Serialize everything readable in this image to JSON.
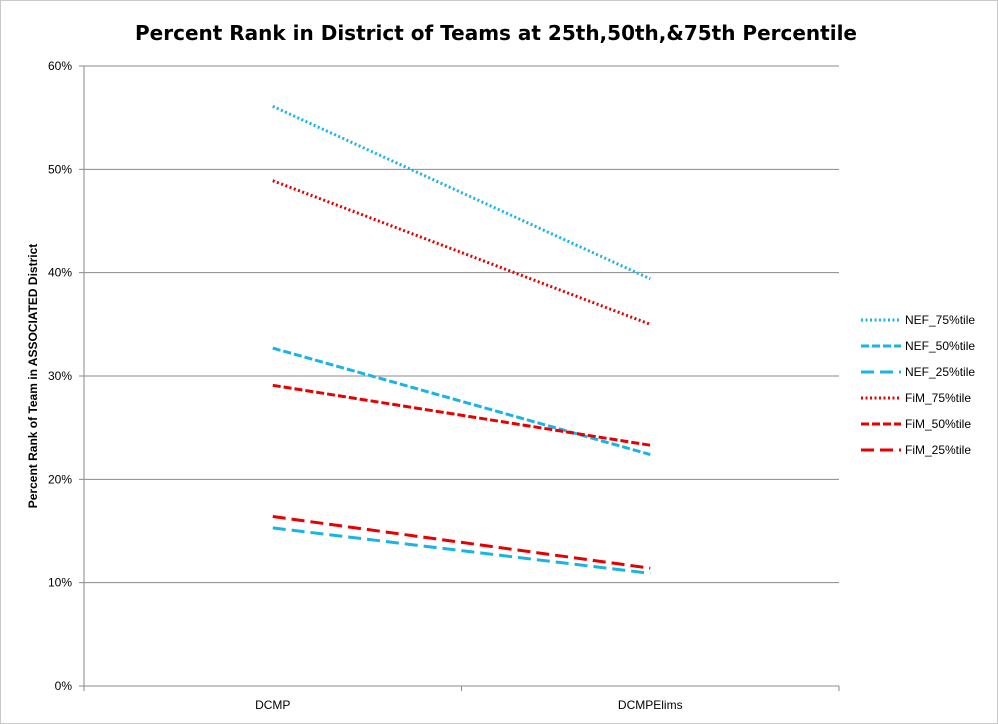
{
  "chart_data": {
    "type": "line",
    "title": "Percent Rank in District of Teams at 25th,50th,&75th Percentile",
    "xlabel": "",
    "ylabel": "Percent Rank of Team in ASSOCIATED District",
    "categories": [
      "DCMP",
      "DCMPElims"
    ],
    "ylim": [
      0,
      60
    ],
    "yticks": [
      "0%",
      "10%",
      "20%",
      "30%",
      "40%",
      "50%",
      "60%"
    ],
    "grid": true,
    "legend_position": "right",
    "series": [
      {
        "name": "NEF_75%tile",
        "values": [
          56.1,
          39.4
        ],
        "color": "#1ab3e6",
        "style": "dotted"
      },
      {
        "name": "NEF_50%tile",
        "values": [
          32.7,
          22.4
        ],
        "color": "#1ab3e6",
        "style": "dashed"
      },
      {
        "name": "NEF_25%tile",
        "values": [
          15.3,
          10.9
        ],
        "color": "#1ab3e6",
        "style": "longdash"
      },
      {
        "name": "FiM_75%tile",
        "values": [
          48.9,
          35.0
        ],
        "color": "#e60000",
        "style": "dotted"
      },
      {
        "name": "FiM_50%tile",
        "values": [
          29.1,
          23.3
        ],
        "color": "#e60000",
        "style": "dashed"
      },
      {
        "name": "FiM_25%tile",
        "values": [
          16.4,
          11.4
        ],
        "color": "#e60000",
        "style": "longdash"
      }
    ]
  }
}
